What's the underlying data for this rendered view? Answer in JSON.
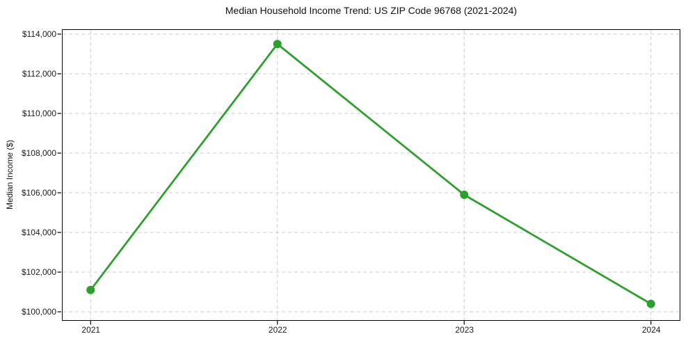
{
  "chart_data": {
    "type": "line",
    "title": "Median Household Income Trend: US ZIP Code 96768 (2021-2024)",
    "xlabel": "",
    "ylabel": "Median Income ($)",
    "categories": [
      2021,
      2022,
      2023,
      2024
    ],
    "values": [
      101100,
      113500,
      105900,
      100400
    ],
    "x_tick_labels": [
      "2021",
      "2022",
      "2023",
      "2024"
    ],
    "y_ticks": [
      100000,
      102000,
      104000,
      106000,
      108000,
      110000,
      112000,
      114000
    ],
    "y_tick_labels": [
      "$100,000",
      "$102,000",
      "$104,000",
      "$106,000",
      "$108,000",
      "$110,000",
      "$112,000",
      "$114,000"
    ],
    "xlim": [
      2020.85,
      2024.15
    ],
    "ylim": [
      99615,
      114210
    ],
    "grid": true,
    "grid_style": "dashed",
    "grid_color": "#cccccc",
    "line_color": "#2ca02c",
    "marker": "circle",
    "marker_radius": 6,
    "line_width": 2.8,
    "axis_color": "#000000",
    "text_color": "#1a1a1a",
    "legend_position": "none"
  }
}
